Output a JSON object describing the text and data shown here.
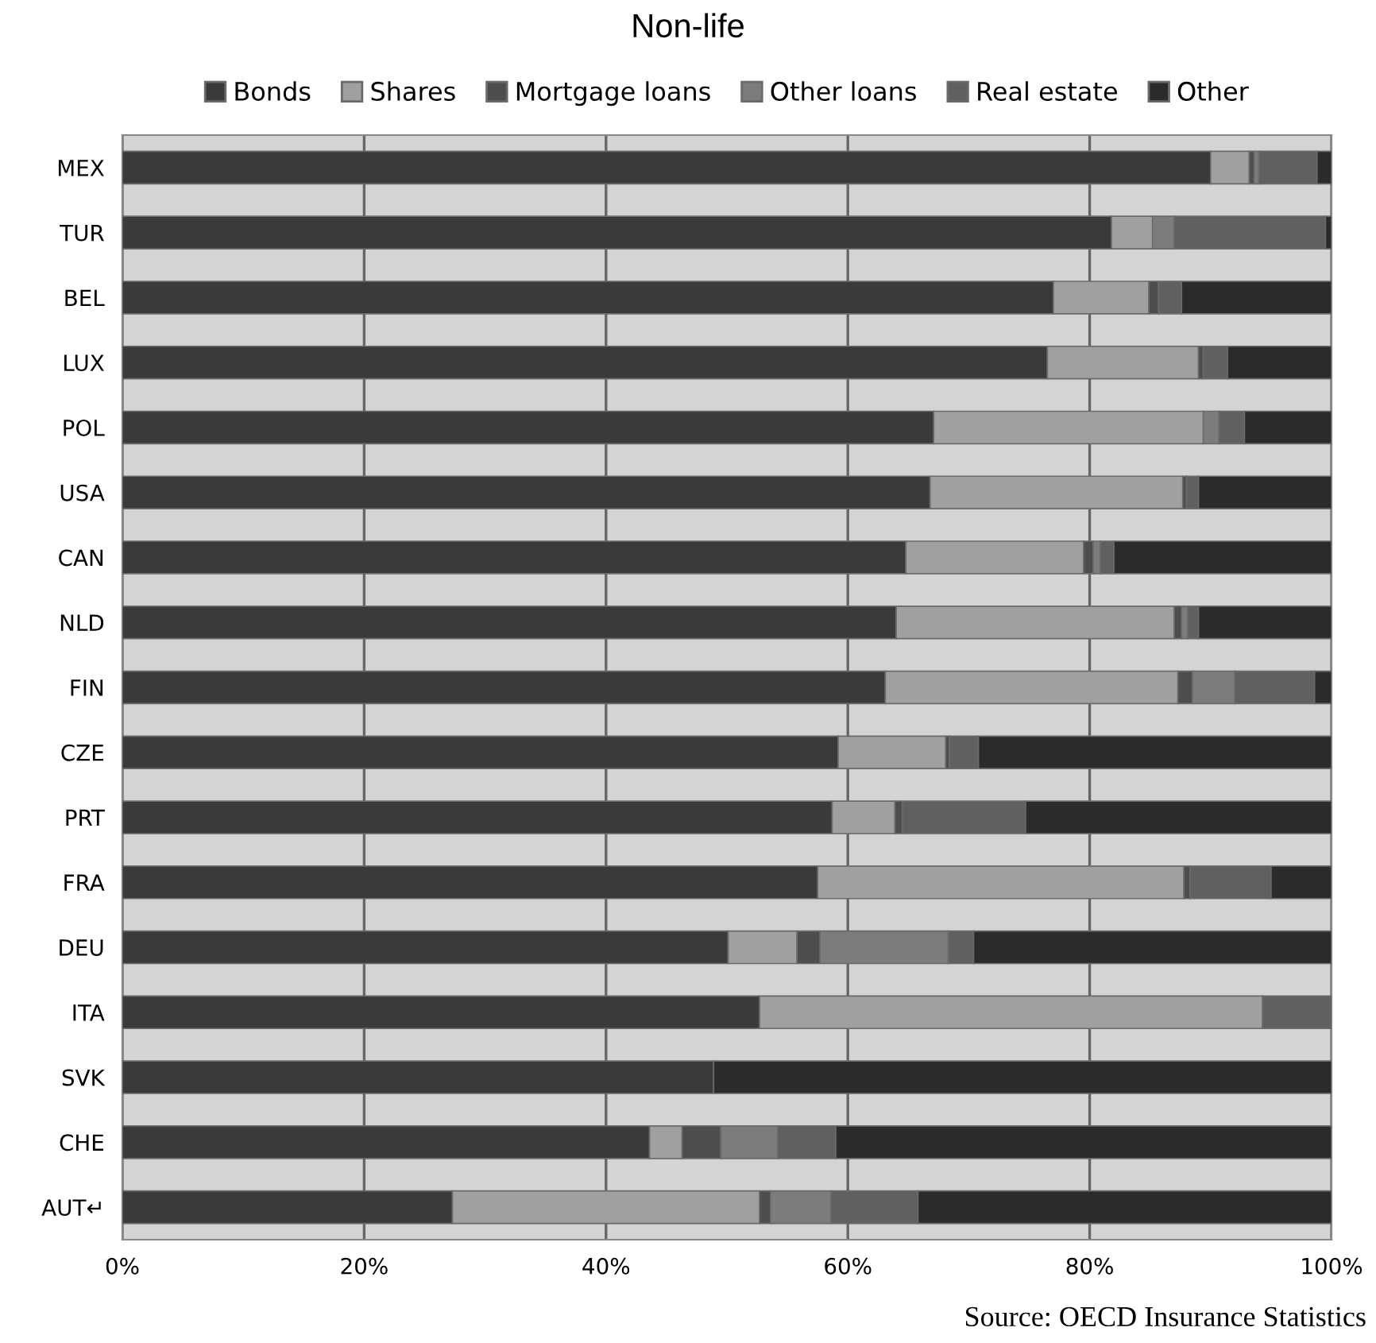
{
  "chart_data": {
    "type": "bar",
    "orientation": "horizontal",
    "stacked": true,
    "title": "Non-life",
    "categories": [
      "MEX",
      "TUR",
      "BEL",
      "LUX",
      "POL",
      "USA",
      "CAN",
      "NLD",
      "FIN",
      "CZE",
      "PRT",
      "FRA",
      "DEU",
      "ITA",
      "SVK",
      "CHE",
      "AUT↵"
    ],
    "series": [
      {
        "name": "Bonds",
        "color": "#3a3a3a",
        "values": [
          90.0,
          81.8,
          77.0,
          76.5,
          67.1,
          66.8,
          64.8,
          64.0,
          63.1,
          59.2,
          58.7,
          57.5,
          50.1,
          52.7,
          48.9,
          43.6,
          27.3
        ]
      },
      {
        "name": "Shares",
        "color": "#a0a0a0",
        "values": [
          3.2,
          3.4,
          7.9,
          12.5,
          22.3,
          20.9,
          14.7,
          23.0,
          24.2,
          8.9,
          5.2,
          30.3,
          5.7,
          41.6,
          0,
          2.7,
          25.4
        ]
      },
      {
        "name": "Mortgage loans",
        "color": "#4d4d4d",
        "values": [
          0.4,
          0,
          0.8,
          0.4,
          0,
          0.3,
          0.8,
          0.6,
          1.2,
          0.3,
          0.6,
          0.5,
          1.9,
          0,
          0,
          3.2,
          0.9
        ]
      },
      {
        "name": "Other loans",
        "color": "#7c7c7c",
        "values": [
          0.4,
          1.8,
          0,
          0,
          1.3,
          0,
          0.6,
          0.5,
          3.5,
          0,
          0,
          0,
          10.6,
          0,
          0,
          4.7,
          5.0
        ]
      },
      {
        "name": "Real estate",
        "color": "#606060",
        "values": [
          4.8,
          12.5,
          1.9,
          2.0,
          2.1,
          1.0,
          1.1,
          0.9,
          6.6,
          2.4,
          10.2,
          6.7,
          2.1,
          5.7,
          0,
          4.8,
          7.2
        ]
      },
      {
        "name": "Other",
        "color": "#2b2b2b",
        "values": [
          1.2,
          0.5,
          12.4,
          8.6,
          7.2,
          11.0,
          18.0,
          11.0,
          1.4,
          29.2,
          25.3,
          5.0,
          29.6,
          0,
          51.1,
          41.0,
          34.2
        ]
      }
    ],
    "xlim": [
      0,
      100
    ],
    "xticks": [
      {
        "value": 0,
        "label": "0%"
      },
      {
        "value": 20,
        "label": "20%"
      },
      {
        "value": 40,
        "label": "40%"
      },
      {
        "value": 60,
        "label": "60%"
      },
      {
        "value": 80,
        "label": "80%"
      },
      {
        "value": 100,
        "label": "100%"
      }
    ],
    "grid": "x",
    "legend": "top",
    "annotations": [
      "Source: OECD Insurance Statistics"
    ]
  }
}
